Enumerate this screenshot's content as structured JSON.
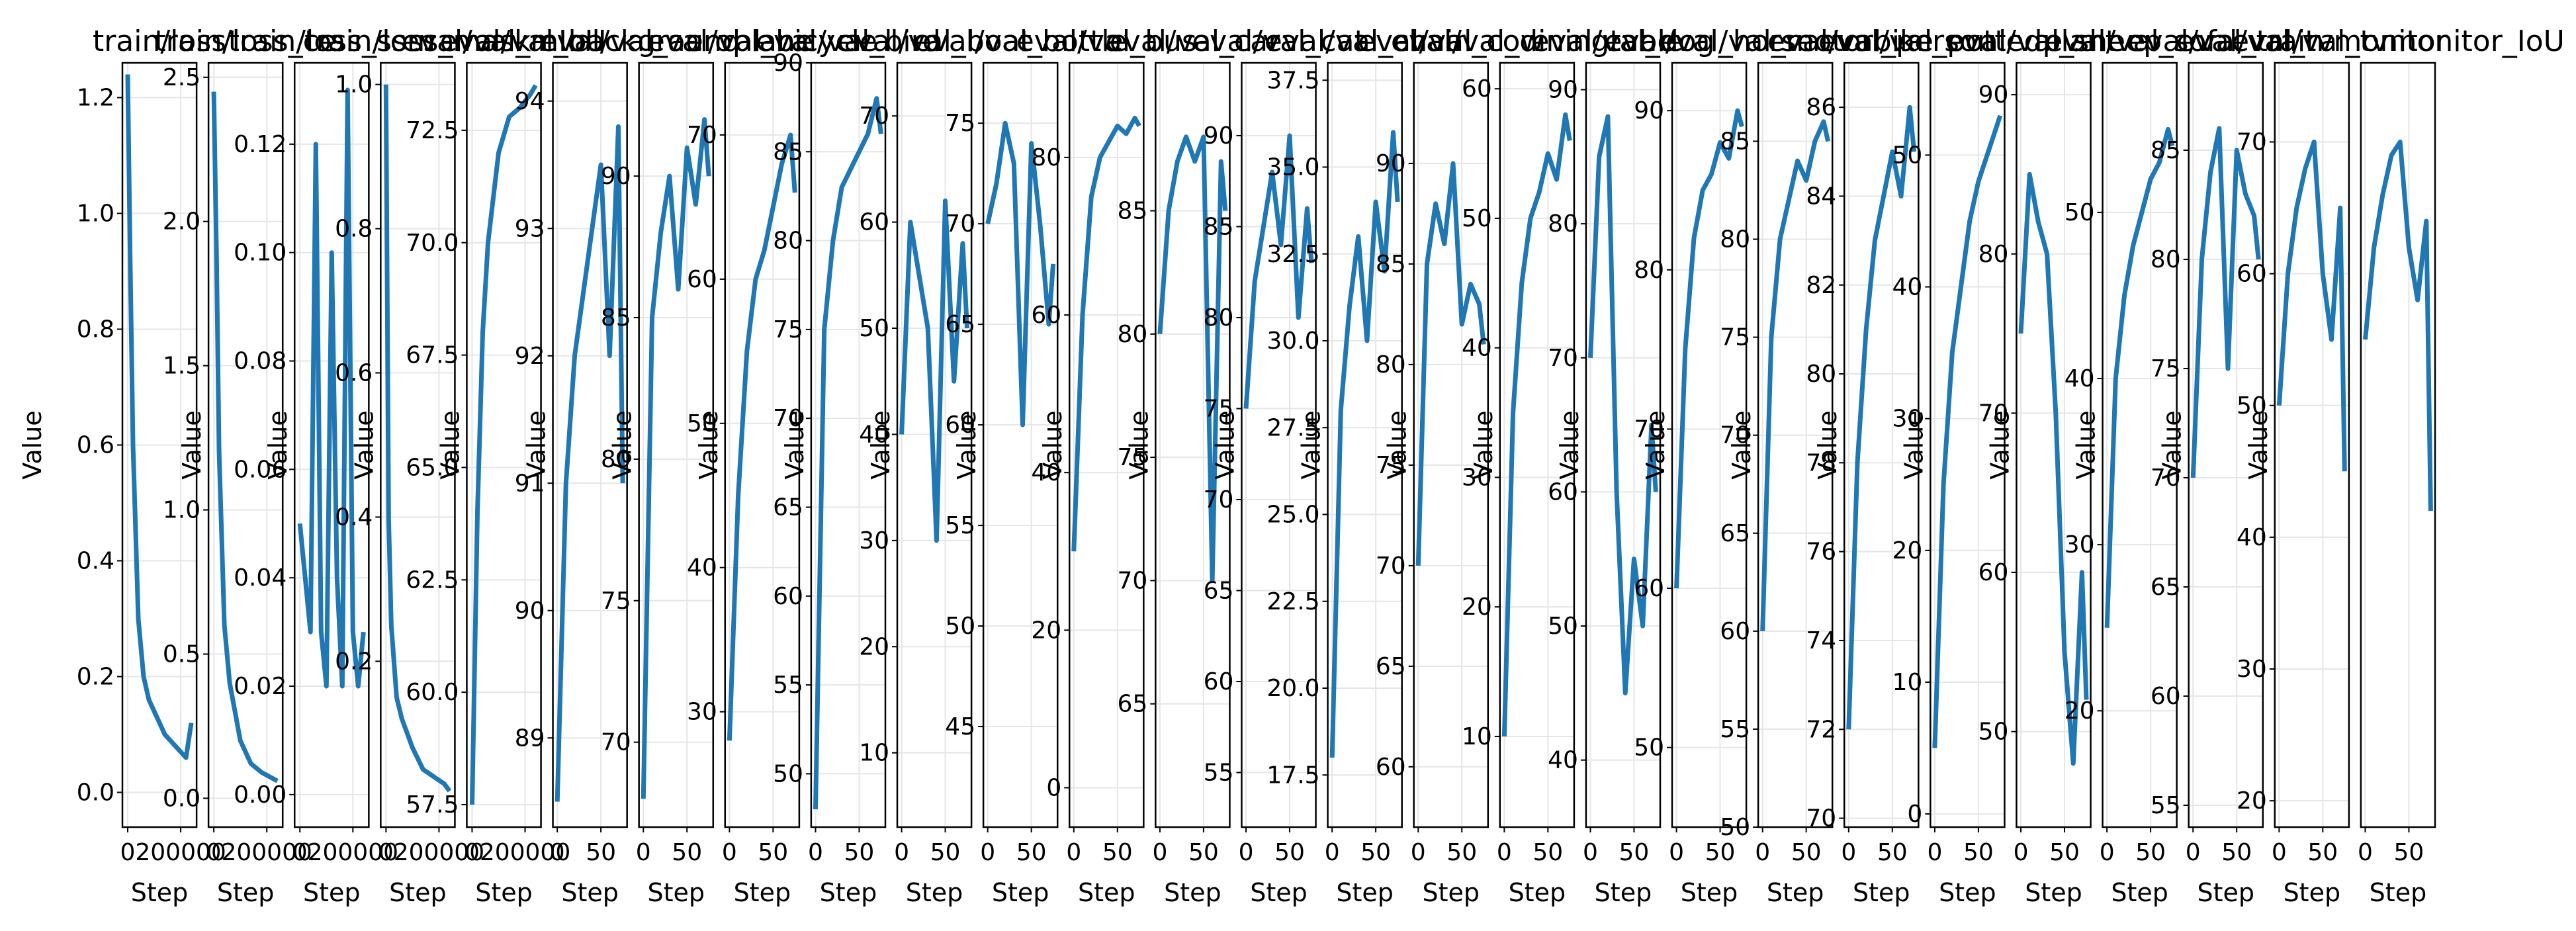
{
  "line_color": "#1f77b4",
  "chart_data": [
    {
      "type": "line",
      "title": "train/loss",
      "xlabel": "Step",
      "ylabel": "Value",
      "ylim": [
        -0.06,
        1.26
      ],
      "yticks": [
        "0.0",
        "0.2",
        "0.4",
        "0.6",
        "0.8",
        "1.0",
        "1.2"
      ],
      "xlim": [
        -20000,
        260000
      ],
      "xticks": [
        "0",
        "200000"
      ],
      "x": [
        0,
        10000,
        20000,
        30000,
        40000,
        60000,
        80000,
        100000,
        120000,
        140000,
        160000,
        180000,
        200000,
        220000,
        240000
      ],
      "y": [
        1.24,
        0.9,
        0.6,
        0.45,
        0.3,
        0.2,
        0.16,
        0.14,
        0.12,
        0.1,
        0.09,
        0.08,
        0.07,
        0.06,
        0.12
      ]
    },
    {
      "type": "line",
      "title": "train/loss_ce",
      "xlabel": "Step",
      "ylabel": "Value",
      "ylim": [
        -0.1,
        2.55
      ],
      "yticks": [
        "0.0",
        "0.5",
        "1.0",
        "1.5",
        "2.0",
        "2.5"
      ],
      "xlim": [
        -20000,
        260000
      ],
      "xticks": [
        "0",
        "200000"
      ],
      "x": [
        0,
        10000,
        20000,
        40000,
        60000,
        80000,
        100000,
        140000,
        180000,
        220000,
        240000
      ],
      "y": [
        2.45,
        1.9,
        1.2,
        0.6,
        0.4,
        0.3,
        0.2,
        0.12,
        0.09,
        0.07,
        0.06
      ]
    },
    {
      "type": "line",
      "title": "train/loss_ssm",
      "xlabel": "Step",
      "ylabel": "Value",
      "ylim": [
        -0.006,
        0.135
      ],
      "yticks": [
        "0.00",
        "0.02",
        "0.04",
        "0.06",
        "0.08",
        "0.10",
        "0.12"
      ],
      "xlim": [
        -20000,
        260000
      ],
      "xticks": [
        "0",
        "200000"
      ],
      "x": [
        0,
        20000,
        40000,
        60000,
        80000,
        100000,
        120000,
        140000,
        160000,
        180000,
        200000,
        220000,
        240000
      ],
      "y": [
        0.05,
        0.04,
        0.03,
        0.12,
        0.03,
        0.02,
        0.1,
        0.04,
        0.02,
        0.13,
        0.03,
        0.02,
        0.03
      ]
    },
    {
      "type": "line",
      "title": "train/loss_mask",
      "xlabel": "Step",
      "ylabel": "Value",
      "ylim": [
        -0.03,
        1.03
      ],
      "yticks": [
        "0.2",
        "0.4",
        "0.6",
        "0.8",
        "1.0"
      ],
      "xlim": [
        -20000,
        260000
      ],
      "xticks": [
        "0",
        "200000"
      ],
      "x": [
        0,
        10000,
        20000,
        40000,
        60000,
        80000,
        100000,
        140000,
        180000,
        220000,
        240000
      ],
      "y": [
        1.0,
        0.4,
        0.25,
        0.15,
        0.12,
        0.1,
        0.08,
        0.05,
        0.04,
        0.03,
        0.02
      ]
    },
    {
      "type": "line",
      "title": "eval/val_mIoU",
      "xlabel": "Step",
      "ylabel": "Value",
      "ylim": [
        57,
        74
      ],
      "yticks": [
        "57.5",
        "60.0",
        "62.5",
        "65.0",
        "67.5",
        "70.0",
        "72.5"
      ],
      "xlim": [
        -20000,
        260000
      ],
      "xticks": [
        "0",
        "200000"
      ],
      "x": [
        0,
        20000,
        40000,
        60000,
        80000,
        100000,
        140000,
        180000,
        220000,
        240000
      ],
      "y": [
        57.5,
        64,
        68,
        70,
        71,
        72,
        72.8,
        73,
        73.3,
        73.5
      ]
    },
    {
      "type": "line",
      "title": "eval/val_background",
      "xlabel": "Step",
      "ylabel": "Value",
      "ylim": [
        88.3,
        94.3
      ],
      "yticks": [
        "89",
        "90",
        "91",
        "92",
        "93",
        "94"
      ],
      "xlim": [
        -5,
        80
      ],
      "xticks": [
        "0",
        "50"
      ],
      "x": [
        0,
        10,
        20,
        30,
        40,
        50,
        60,
        70,
        75
      ],
      "y": [
        88.5,
        91,
        92,
        92.5,
        93,
        93.5,
        92,
        93.8,
        91
      ]
    },
    {
      "type": "line",
      "title": "eval/val_aeroplane",
      "xlabel": "Step",
      "ylabel": "Value",
      "ylim": [
        67,
        94
      ],
      "yticks": [
        "70",
        "75",
        "80",
        "85",
        "90"
      ],
      "xlim": [
        -5,
        80
      ],
      "xticks": [
        "0",
        "50"
      ],
      "x": [
        0,
        10,
        20,
        30,
        40,
        50,
        60,
        70,
        75
      ],
      "y": [
        68,
        85,
        88,
        90,
        86,
        91,
        89,
        92,
        90
      ]
    },
    {
      "type": "line",
      "title": "eval/val_bicycle",
      "xlabel": "Step",
      "ylabel": "Value",
      "ylim": [
        22,
        75
      ],
      "yticks": [
        "30",
        "40",
        "50",
        "60",
        "70"
      ],
      "xlim": [
        -5,
        80
      ],
      "xticks": [
        "0",
        "50"
      ],
      "x": [
        0,
        10,
        20,
        30,
        40,
        50,
        60,
        70,
        75
      ],
      "y": [
        28,
        45,
        55,
        60,
        62,
        65,
        68,
        70,
        66
      ]
    },
    {
      "type": "line",
      "title": "eval/val_bird",
      "xlabel": "Step",
      "ylabel": "Value",
      "ylim": [
        47,
        90
      ],
      "yticks": [
        "50",
        "55",
        "60",
        "65",
        "70",
        "75",
        "80",
        "85",
        "90"
      ],
      "xlim": [
        -5,
        80
      ],
      "xticks": [
        "0",
        "50"
      ],
      "x": [
        0,
        10,
        20,
        30,
        40,
        50,
        60,
        70,
        75
      ],
      "y": [
        48,
        75,
        80,
        83,
        84,
        85,
        86,
        88,
        86
      ]
    },
    {
      "type": "line",
      "title": "eval/val_boat",
      "xlabel": "Step",
      "ylabel": "Value",
      "ylim": [
        3,
        75
      ],
      "yticks": [
        "10",
        "20",
        "30",
        "40",
        "50",
        "60",
        "70"
      ],
      "xlim": [
        -5,
        80
      ],
      "xticks": [
        "0",
        "50"
      ],
      "x": [
        0,
        10,
        20,
        30,
        40,
        50,
        60,
        70,
        75
      ],
      "y": [
        40,
        60,
        55,
        50,
        30,
        62,
        45,
        58,
        50
      ]
    },
    {
      "type": "line",
      "title": "eval/val_bottle",
      "xlabel": "Step",
      "ylabel": "Value",
      "ylim": [
        40,
        78
      ],
      "yticks": [
        "45",
        "50",
        "55",
        "60",
        "65",
        "70",
        "75"
      ],
      "xlim": [
        -5,
        80
      ],
      "xticks": [
        "0",
        "50"
      ],
      "x": [
        0,
        10,
        20,
        30,
        40,
        50,
        60,
        70,
        75
      ],
      "y": [
        70,
        72,
        75,
        73,
        60,
        74,
        70,
        65,
        68
      ]
    },
    {
      "type": "line",
      "title": "eval/val_bus",
      "xlabel": "Step",
      "ylabel": "Value",
      "ylim": [
        -5,
        92
      ],
      "yticks": [
        "0",
        "20",
        "40",
        "60",
        "80"
      ],
      "xlim": [
        -5,
        80
      ],
      "xticks": [
        "0",
        "50"
      ],
      "x": [
        0,
        10,
        20,
        30,
        40,
        50,
        60,
        70,
        75
      ],
      "y": [
        30,
        60,
        75,
        80,
        82,
        84,
        83,
        85,
        84
      ]
    },
    {
      "type": "line",
      "title": "eval/val_car",
      "xlabel": "Step",
      "ylabel": "Value",
      "ylim": [
        60,
        91
      ],
      "yticks": [
        "65",
        "70",
        "75",
        "80",
        "85"
      ],
      "xlim": [
        -5,
        80
      ],
      "xticks": [
        "0",
        "50"
      ],
      "x": [
        0,
        10,
        20,
        30,
        40,
        50,
        60,
        70,
        75
      ],
      "y": [
        80,
        85,
        87,
        88,
        87,
        88,
        70,
        87,
        85
      ]
    },
    {
      "type": "line",
      "title": "eval/val_cat",
      "xlabel": "Step",
      "ylabel": "Value",
      "ylim": [
        52,
        94
      ],
      "yticks": [
        "55",
        "60",
        "65",
        "70",
        "75",
        "80",
        "85",
        "90"
      ],
      "xlim": [
        -5,
        80
      ],
      "xticks": [
        "0",
        "50"
      ],
      "x": [
        0,
        10,
        20,
        30,
        40,
        50,
        60,
        70,
        75
      ],
      "y": [
        75,
        82,
        85,
        88,
        84,
        90,
        80,
        86,
        83
      ]
    },
    {
      "type": "line",
      "title": "eval/val_chair",
      "xlabel": "Step",
      "ylabel": "Value",
      "ylim": [
        16,
        38
      ],
      "yticks": [
        "17.5",
        "20.0",
        "22.5",
        "25.0",
        "27.5",
        "30.0",
        "32.5",
        "35.0",
        "37.5"
      ],
      "xlim": [
        -5,
        80
      ],
      "xticks": [
        "0",
        "50"
      ],
      "x": [
        0,
        10,
        20,
        30,
        40,
        50,
        60,
        70,
        75
      ],
      "y": [
        18,
        28,
        31,
        33,
        30,
        34,
        32,
        36,
        34
      ]
    },
    {
      "type": "line",
      "title": "eval/val_cow",
      "xlabel": "Step",
      "ylabel": "Value",
      "ylim": [
        57,
        95
      ],
      "yticks": [
        "60",
        "65",
        "70",
        "75",
        "80",
        "85",
        "90"
      ],
      "xlim": [
        -5,
        80
      ],
      "xticks": [
        "0",
        "50"
      ],
      "x": [
        0,
        10,
        20,
        30,
        40,
        50,
        60,
        70,
        75
      ],
      "y": [
        70,
        85,
        88,
        86,
        90,
        82,
        84,
        83,
        81
      ]
    },
    {
      "type": "line",
      "title": "eval/val_diningtable",
      "xlabel": "Step",
      "ylabel": "Value",
      "ylim": [
        3,
        62
      ],
      "yticks": [
        "10",
        "20",
        "30",
        "40",
        "50",
        "60"
      ],
      "xlim": [
        -5,
        80
      ],
      "xticks": [
        "0",
        "50"
      ],
      "x": [
        0,
        10,
        20,
        30,
        40,
        50,
        60,
        70,
        75
      ],
      "y": [
        10,
        35,
        45,
        50,
        52,
        55,
        53,
        58,
        56
      ]
    },
    {
      "type": "line",
      "title": "eval/val_dog",
      "xlabel": "Step",
      "ylabel": "Value",
      "ylim": [
        35,
        92
      ],
      "yticks": [
        "40",
        "50",
        "60",
        "70",
        "80",
        "90"
      ],
      "xlim": [
        -5,
        80
      ],
      "xticks": [
        "0",
        "50"
      ],
      "x": [
        0,
        10,
        20,
        30,
        40,
        50,
        60,
        70,
        75
      ],
      "y": [
        70,
        85,
        88,
        60,
        45,
        55,
        50,
        65,
        60
      ]
    },
    {
      "type": "line",
      "title": "eval/val_horse",
      "xlabel": "Step",
      "ylabel": "Value",
      "ylim": [
        45,
        93
      ],
      "yticks": [
        "50",
        "60",
        "70",
        "80",
        "90"
      ],
      "xlim": [
        -5,
        80
      ],
      "xticks": [
        "0",
        "50"
      ],
      "x": [
        0,
        10,
        20,
        30,
        40,
        50,
        60,
        70,
        75
      ],
      "y": [
        60,
        75,
        82,
        85,
        86,
        88,
        87,
        90,
        89
      ]
    },
    {
      "type": "line",
      "title": "eval/val_motorbike",
      "xlabel": "Step",
      "ylabel": "Value",
      "ylim": [
        50,
        89
      ],
      "yticks": [
        "50",
        "55",
        "60",
        "65",
        "70",
        "75",
        "80",
        "85"
      ],
      "xlim": [
        -5,
        80
      ],
      "xticks": [
        "0",
        "50"
      ],
      "x": [
        0,
        10,
        20,
        30,
        40,
        50,
        60,
        70,
        75
      ],
      "y": [
        60,
        75,
        80,
        82,
        84,
        83,
        85,
        86,
        85
      ]
    },
    {
      "type": "line",
      "title": "eval/val_person",
      "xlabel": "Step",
      "ylabel": "Value",
      "ylim": [
        69.8,
        87
      ],
      "yticks": [
        "70",
        "72",
        "74",
        "76",
        "78",
        "80",
        "82",
        "84",
        "86"
      ],
      "xlim": [
        -5,
        80
      ],
      "xticks": [
        "0",
        "50"
      ],
      "x": [
        0,
        10,
        20,
        30,
        40,
        50,
        60,
        70,
        75
      ],
      "y": [
        72,
        78,
        81,
        83,
        84,
        85,
        84,
        86,
        85
      ]
    },
    {
      "type": "line",
      "title": "eval/val_pottedplant",
      "xlabel": "Step",
      "ylabel": "Value",
      "ylim": [
        -1,
        57
      ],
      "yticks": [
        "0",
        "10",
        "20",
        "30",
        "40",
        "50"
      ],
      "xlim": [
        -5,
        80
      ],
      "xticks": [
        "0",
        "50"
      ],
      "x": [
        0,
        10,
        20,
        30,
        40,
        50,
        60,
        70,
        75
      ],
      "y": [
        5,
        25,
        35,
        40,
        45,
        48,
        50,
        52,
        53
      ]
    },
    {
      "type": "line",
      "title": "eval/val_sheep",
      "xlabel": "Step",
      "ylabel": "Value",
      "ylim": [
        44,
        92
      ],
      "yticks": [
        "50",
        "60",
        "70",
        "80",
        "90"
      ],
      "xlim": [
        -5,
        80
      ],
      "xticks": [
        "0",
        "50"
      ],
      "x": [
        0,
        10,
        20,
        30,
        40,
        50,
        60,
        70,
        75
      ],
      "y": [
        75,
        85,
        82,
        80,
        70,
        55,
        48,
        60,
        52
      ]
    },
    {
      "type": "line",
      "title": "eval/val_sofa",
      "xlabel": "Step",
      "ylabel": "Value",
      "ylim": [
        13,
        59
      ],
      "yticks": [
        "20",
        "30",
        "40",
        "50"
      ],
      "xlim": [
        -5,
        80
      ],
      "xticks": [
        "0",
        "50"
      ],
      "x": [
        0,
        10,
        20,
        30,
        40,
        50,
        60,
        70,
        75
      ],
      "y": [
        25,
        40,
        45,
        48,
        50,
        52,
        53,
        55,
        54
      ]
    },
    {
      "type": "line",
      "title": "eval/val_train",
      "xlabel": "Step",
      "ylabel": "Value",
      "ylim": [
        54,
        89
      ],
      "yticks": [
        "55",
        "60",
        "65",
        "70",
        "75",
        "80",
        "85"
      ],
      "xlim": [
        -5,
        80
      ],
      "xticks": [
        "0",
        "50"
      ],
      "x": [
        0,
        10,
        20,
        30,
        40,
        50,
        60,
        70,
        75
      ],
      "y": [
        70,
        80,
        84,
        86,
        75,
        85,
        83,
        82,
        80
      ]
    },
    {
      "type": "line",
      "title": "eval/val_tvmonitor",
      "xlabel": "Step",
      "ylabel": "Value",
      "ylim": [
        18,
        76
      ],
      "yticks": [
        "20",
        "30",
        "40",
        "50",
        "60",
        "70"
      ],
      "xlim": [
        -5,
        80
      ],
      "xticks": [
        "0",
        "50"
      ],
      "x": [
        0,
        10,
        20,
        30,
        40,
        50,
        60,
        70,
        75
      ],
      "y": [
        50,
        60,
        65,
        68,
        70,
        60,
        55,
        65,
        45
      ]
    },
    {
      "type": "line",
      "title": "eval/val_tvmonitor_IoU",
      "xlabel": "Step",
      "ylabel": "",
      "ylim": [
        18,
        76
      ],
      "yticks": [],
      "xlim": [
        -5,
        80
      ],
      "xticks": [
        "0",
        "50"
      ],
      "x": [
        0,
        10,
        20,
        30,
        40,
        50,
        60,
        70,
        75
      ],
      "y": [
        55,
        62,
        66,
        69,
        70,
        62,
        58,
        64,
        42
      ]
    }
  ]
}
